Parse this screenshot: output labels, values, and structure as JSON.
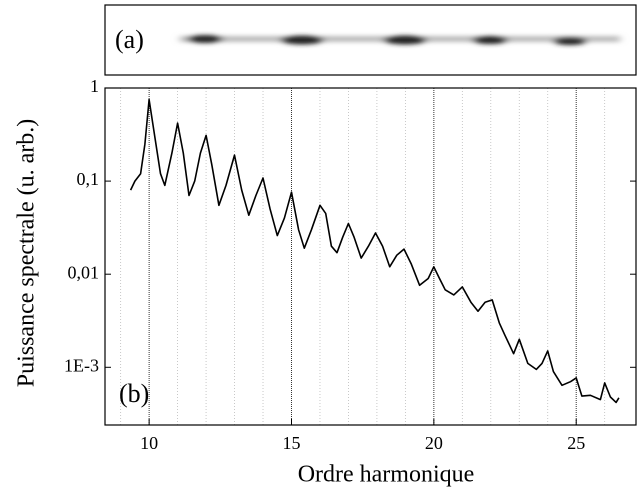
{
  "chart_data": {
    "type": "line",
    "log_y": true,
    "grid": true,
    "panel_a_label": "(a)",
    "panel_b_label": "(b)",
    "xlabel": "Ordre harmonique",
    "ylabel": "Puissance spectrale (u. arb.)",
    "xlim": [
      8.45,
      27.1
    ],
    "ylim": [
      0.00024,
      1
    ],
    "xticks": [
      10,
      15,
      20,
      25
    ],
    "xminorticks": [
      9,
      11,
      12,
      13,
      14,
      16,
      17,
      18,
      19,
      21,
      22,
      23,
      24,
      26
    ],
    "yticks": [
      1,
      {
        "value": 0.1,
        "label": "0,1"
      },
      {
        "value": 0.01,
        "label": "0,01"
      },
      {
        "value": 0.001,
        "label": "1E-3"
      }
    ],
    "series": [
      {
        "color": "#000000",
        "x": [
          9.35,
          9.5,
          9.7,
          9.85,
          10.0,
          10.2,
          10.4,
          10.55,
          10.8,
          11.0,
          11.2,
          11.4,
          11.6,
          11.8,
          12.0,
          12.2,
          12.45,
          12.7,
          13.0,
          13.25,
          13.5,
          13.75,
          14.0,
          14.25,
          14.5,
          14.75,
          15.0,
          15.25,
          15.45,
          15.7,
          16.0,
          16.2,
          16.4,
          16.6,
          16.8,
          17.0,
          17.2,
          17.45,
          17.7,
          17.95,
          18.2,
          18.45,
          18.7,
          18.95,
          19.2,
          19.5,
          19.8,
          20.0,
          20.2,
          20.4,
          20.7,
          21.0,
          21.3,
          21.55,
          21.8,
          22.05,
          22.3,
          22.5,
          22.8,
          23.0,
          23.3,
          23.6,
          23.8,
          24.0,
          24.2,
          24.5,
          24.8,
          25.0,
          25.2,
          25.5,
          25.85,
          26.0,
          26.2,
          26.4,
          26.5
        ],
        "values": [
          0.08,
          0.1,
          0.12,
          0.25,
          0.75,
          0.3,
          0.12,
          0.09,
          0.2,
          0.42,
          0.2,
          0.07,
          0.1,
          0.2,
          0.31,
          0.15,
          0.055,
          0.09,
          0.19,
          0.08,
          0.043,
          0.07,
          0.108,
          0.05,
          0.026,
          0.04,
          0.076,
          0.03,
          0.019,
          0.03,
          0.055,
          0.045,
          0.02,
          0.017,
          0.025,
          0.035,
          0.025,
          0.0149,
          0.02,
          0.0277,
          0.02,
          0.012,
          0.016,
          0.0186,
          0.013,
          0.0076,
          0.009,
          0.012,
          0.009,
          0.0068,
          0.006,
          0.0073,
          0.005,
          0.004,
          0.005,
          0.0053,
          0.003,
          0.0022,
          0.0014,
          0.002,
          0.0011,
          0.00095,
          0.0011,
          0.0015,
          0.0009,
          0.00064,
          0.0007,
          0.00077,
          0.00049,
          0.0005,
          0.00045,
          0.00068,
          0.00048,
          0.00042,
          0.00047
        ]
      }
    ]
  }
}
